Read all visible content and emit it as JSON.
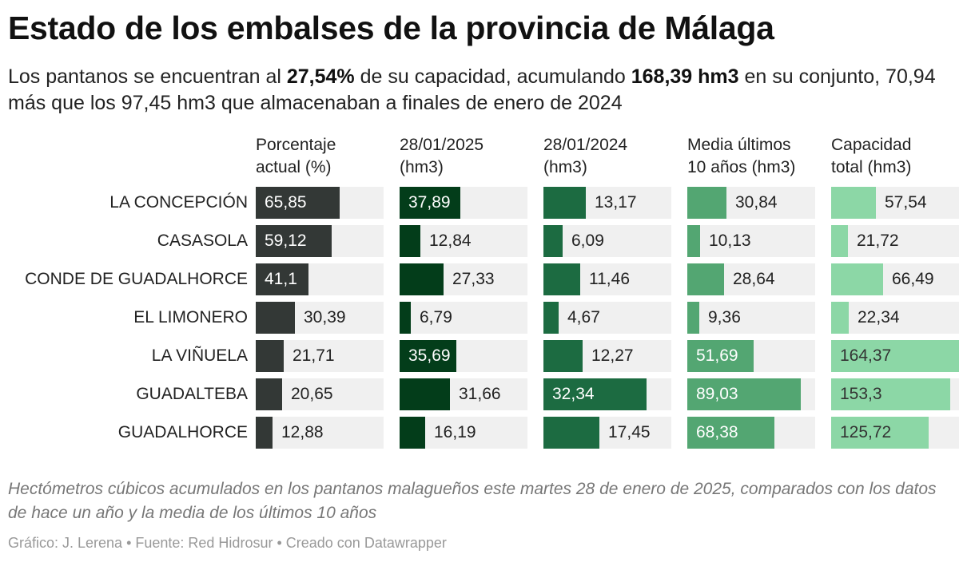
{
  "title": "Estado de los embalses de la provincia de Málaga",
  "subtitle": {
    "part1": "Los pantanos se encuentran al ",
    "bold1": "27,54%",
    "part2": " de su capacidad, acumulando ",
    "bold2": "168,39 hm3",
    "part3": " en su conjunto, 70,94 más que los 97,45 hm3 que almacenaban a finales de enero de 2024"
  },
  "chart_data": {
    "type": "bar",
    "categories": [
      "LA CONCEPCIÓN",
      "CASASOLA",
      "CONDE DE GUADALHORCE",
      "EL LIMONERO",
      "LA VIÑUELA",
      "GUADALTEBA",
      "GUADALHORCE"
    ],
    "series": [
      {
        "name": "Porcentaje actual (%)",
        "line1": "Porcentaje",
        "line2": "actual (%)",
        "color": "#333836",
        "values": [
          65.85,
          59.12,
          41.1,
          30.39,
          21.71,
          20.65,
          12.88
        ],
        "labels": [
          "65,85",
          "59,12",
          "41,1",
          "30,39",
          "21,71",
          "20,65",
          "12,88"
        ]
      },
      {
        "name": "28/01/2025 (hm3)",
        "line1": "28/01/2025",
        "line2": "(hm3)",
        "color": "#033d1a",
        "values": [
          37.89,
          12.84,
          27.33,
          6.79,
          35.69,
          31.66,
          16.19
        ],
        "labels": [
          "37,89",
          "12,84",
          "27,33",
          "6,79",
          "35,69",
          "31,66",
          "16,19"
        ]
      },
      {
        "name": "28/01/2024 (hm3)",
        "line1": "28/01/2024",
        "line2": "(hm3)",
        "color": "#1c6b41",
        "values": [
          13.17,
          6.09,
          11.46,
          4.67,
          12.27,
          32.34,
          17.45
        ],
        "labels": [
          "13,17",
          "6,09",
          "11,46",
          "4,67",
          "12,27",
          "32,34",
          "17,45"
        ]
      },
      {
        "name": "Media últimos 10 años (hm3)",
        "line1": "Media últimos",
        "line2": "10 años (hm3)",
        "color": "#53a672",
        "values": [
          30.84,
          10.13,
          28.64,
          9.36,
          51.69,
          89.03,
          68.38
        ],
        "labels": [
          "30,84",
          "10,13",
          "28,64",
          "9,36",
          "51,69",
          "89,03",
          "68,38"
        ]
      },
      {
        "name": "Capacidad total (hm3)",
        "line1": "Capacidad",
        "line2": "total (hm3)",
        "color": "#8cd7a6",
        "values": [
          57.54,
          21.72,
          66.49,
          22.34,
          164.37,
          153.3,
          125.72
        ],
        "labels": [
          "57,54",
          "21,72",
          "66,49",
          "22,34",
          "164,37",
          "153,3",
          "125,72"
        ]
      }
    ],
    "scale_max": [
      100,
      80,
      40,
      100,
      164.37
    ],
    "grid": false,
    "legend": "none"
  },
  "note": "Hectómetros cúbicos acumulados en los pantanos malagueños este martes 28 de enero de 2025, comparados con los datos de hace un año y la media de los últimos 10 años",
  "credits": "Gráfico: J. Lerena • Fuente: Red Hidrosur • Creado con Datawrapper"
}
